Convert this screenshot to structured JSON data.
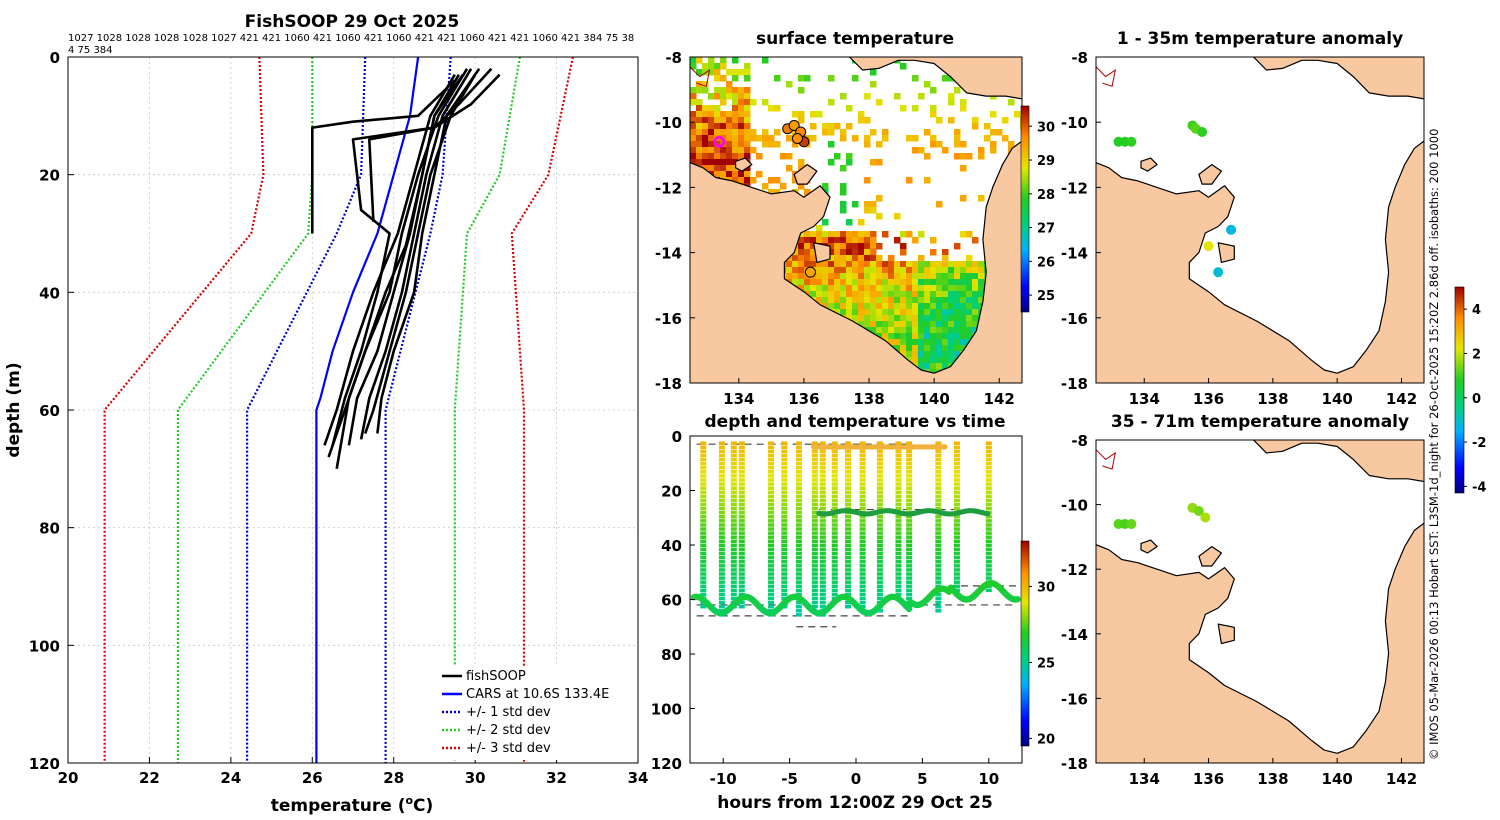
{
  "colors": {
    "land": "#f8c9a0",
    "no_data": "#ffffff",
    "profile": "#000000",
    "cars": "#0000ff",
    "sd1": "#0000cc",
    "sd2": "#22cc22",
    "sd3": "#dd0000",
    "grid": "#c8c8c8",
    "coast": "#000000",
    "river": "#aa0000"
  },
  "credit": "© IMOS 05-Mar-2026 00:13 Hobart SST: L3SM-1d_night for 26-Oct-2025 15:20Z 2.86d off. isobaths: 200  1000",
  "chart_data": [
    {
      "id": "profile",
      "type": "line",
      "title": "FishSOOP 29 Oct 2025",
      "xlabel": "temperature (°C)",
      "ylabel": "depth (m)",
      "xlim": [
        20,
        34
      ],
      "ylim": [
        0,
        120
      ],
      "y_reversed": true,
      "xticks": [
        20,
        22,
        24,
        26,
        28,
        30,
        32,
        34
      ],
      "yticks": [
        0,
        20,
        40,
        60,
        80,
        100,
        120
      ],
      "grid": true,
      "header_line1": "1027 1028 1028 1028 1028 1027 421 421 1060 421 1060 421 1060 421 421 1060 421 421 1060 421 384 75 38",
      "header_line2": "4 75 384",
      "legend": [
        "fishSOOP",
        "CARS at 10.6S 133.4E",
        "+/- 1 std dev",
        "+/- 2 std dev",
        "+/- 3 std dev"
      ],
      "legend_position": "bottom-right",
      "cars": {
        "depth": [
          0,
          10,
          20,
          30,
          40,
          50,
          58,
          60,
          65,
          120
        ],
        "temp": [
          28.6,
          28.4,
          28.0,
          27.6,
          27.0,
          26.5,
          26.2,
          26.1,
          26.1,
          26.1
        ]
      },
      "sd1": {
        "lower": {
          "depth": [
            0,
            20,
            30,
            60,
            120
          ],
          "temp": [
            27.3,
            27.2,
            26.6,
            24.4,
            24.4
          ]
        },
        "upper": {
          "depth": [
            0,
            20,
            30,
            60,
            120
          ],
          "temp": [
            29.4,
            29.2,
            28.9,
            27.8,
            27.8
          ]
        }
      },
      "sd2": {
        "lower": {
          "depth": [
            0,
            20,
            30,
            60,
            120
          ],
          "temp": [
            26.0,
            26.0,
            25.9,
            22.7,
            22.7
          ]
        },
        "upper": {
          "depth": [
            0,
            20,
            30,
            60,
            120
          ],
          "temp": [
            31.1,
            30.6,
            29.8,
            29.5,
            29.5
          ]
        }
      },
      "sd3": {
        "lower": {
          "depth": [
            0,
            20,
            30,
            60,
            120
          ],
          "temp": [
            24.7,
            24.8,
            24.5,
            20.9,
            20.9
          ]
        },
        "upper": {
          "depth": [
            0,
            20,
            30,
            60,
            120
          ],
          "temp": [
            32.4,
            31.8,
            30.9,
            31.2,
            31.2
          ]
        }
      },
      "profiles": [
        {
          "depth": [
            2,
            10,
            20,
            30,
            40,
            50,
            58,
            65
          ],
          "temp": [
            29.9,
            29.2,
            28.8,
            28.5,
            28.2,
            27.8,
            27.4,
            27.2
          ]
        },
        {
          "depth": [
            3,
            10,
            20,
            30,
            40,
            50,
            58,
            66
          ],
          "temp": [
            29.7,
            29.0,
            28.7,
            28.4,
            28.0,
            27.6,
            27.1,
            26.9
          ]
        },
        {
          "depth": [
            2,
            10,
            20,
            30,
            40,
            50,
            58,
            64
          ],
          "temp": [
            30.1,
            29.3,
            29.0,
            28.7,
            28.5,
            28.0,
            27.7,
            27.6
          ]
        },
        {
          "depth": [
            3,
            10,
            20,
            30,
            40,
            50,
            60,
            66
          ],
          "temp": [
            29.5,
            28.9,
            28.5,
            28.1,
            27.5,
            27.0,
            26.6,
            26.3
          ]
        },
        {
          "depth": [
            2,
            10,
            20,
            30,
            40,
            50,
            60,
            68
          ],
          "temp": [
            29.8,
            29.1,
            28.6,
            28.2,
            27.9,
            27.3,
            26.8,
            26.4
          ]
        },
        {
          "depth": [
            3,
            10,
            20,
            30,
            40,
            50,
            60,
            64
          ],
          "temp": [
            30.0,
            29.4,
            28.9,
            28.6,
            28.3,
            27.9,
            27.5,
            27.3
          ]
        },
        {
          "depth": [
            3,
            8,
            12,
            14,
            26,
            30,
            40,
            50,
            58,
            66
          ],
          "temp": [
            30.6,
            29.9,
            29.0,
            27.0,
            27.2,
            27.9,
            27.6,
            27.2,
            26.8,
            26.5
          ]
        },
        {
          "depth": [
            2,
            8,
            12,
            14,
            28
          ],
          "temp": [
            30.4,
            29.6,
            29.0,
            27.4,
            27.5
          ]
        },
        {
          "depth": [
            4,
            10,
            11,
            12,
            30
          ],
          "temp": [
            29.5,
            28.6,
            27.0,
            26.0,
            26.0
          ]
        },
        {
          "depth": [
            3,
            10,
            20,
            32,
            40,
            50,
            58,
            70
          ],
          "temp": [
            29.6,
            29.0,
            28.7,
            28.3,
            27.8,
            27.3,
            26.9,
            26.6
          ]
        }
      ]
    },
    {
      "id": "sst",
      "type": "heatmap",
      "title": "surface temperature",
      "xlim": [
        132.5,
        142.7
      ],
      "ylim": [
        -18,
        -8
      ],
      "xticks": [
        134,
        136,
        138,
        140,
        142
      ],
      "yticks": [
        -8,
        -10,
        -12,
        -14,
        -16,
        -18
      ],
      "colorbar_ticks": [
        25,
        26,
        27,
        28,
        29,
        30
      ],
      "colorbar_range": [
        24.5,
        30.6
      ],
      "markers": [
        {
          "lon": 135.5,
          "lat": -10.2,
          "temp": 29.8
        },
        {
          "lon": 135.7,
          "lat": -10.1,
          "temp": 29.5
        },
        {
          "lon": 135.9,
          "lat": -10.3,
          "temp": 29.7
        },
        {
          "lon": 136.0,
          "lat": -10.6,
          "temp": 30.2
        },
        {
          "lon": 135.8,
          "lat": -10.5,
          "temp": 29.6
        },
        {
          "lon": 136.2,
          "lat": -14.6,
          "temp": 29.4
        }
      ],
      "ship_marker": {
        "lon": 133.4,
        "lat": -10.6
      }
    },
    {
      "id": "timeseries",
      "type": "scatter",
      "title": "depth and temperature vs time",
      "xlabel": "hours from 12:00Z 29 Oct 25",
      "xlim": [
        -12.5,
        12.5
      ],
      "ylim": [
        0,
        120
      ],
      "y_reversed": true,
      "xticks": [
        -10,
        -5,
        0,
        5,
        10
      ],
      "yticks": [
        0,
        20,
        40,
        60,
        80,
        100,
        120
      ],
      "colorbar_ticks": [
        20,
        25,
        30
      ],
      "colorbar_range": [
        19.5,
        33
      ],
      "dives": [
        {
          "t": -11.5,
          "max": 62
        },
        {
          "t": -10.1,
          "max": 66
        },
        {
          "t": -9.2,
          "max": 63
        },
        {
          "t": -8.6,
          "max": 62
        },
        {
          "t": -6.4,
          "max": 65
        },
        {
          "t": -5.4,
          "max": 63
        },
        {
          "t": -4.3,
          "max": 66
        },
        {
          "t": -3.1,
          "max": 62
        },
        {
          "t": -2.5,
          "max": 66
        },
        {
          "t": -1.6,
          "max": 60
        },
        {
          "t": -0.6,
          "max": 63
        },
        {
          "t": 0.5,
          "max": 62
        },
        {
          "t": 1.8,
          "max": 64
        },
        {
          "t": 3.2,
          "max": 60
        },
        {
          "t": 4.0,
          "max": 62
        },
        {
          "t": 6.2,
          "max": 64
        },
        {
          "t": 7.6,
          "max": 58
        },
        {
          "t": 10.0,
          "max": 56
        }
      ],
      "reference_lines": [
        {
          "t0": -12,
          "t1": -5,
          "depth": 62
        },
        {
          "t0": -12,
          "t1": 4,
          "depth": 66
        },
        {
          "t0": -2.8,
          "t1": 8,
          "depth": 27
        },
        {
          "t0": 4,
          "t1": 12,
          "depth": 62
        },
        {
          "t0": 7,
          "t1": 12.2,
          "depth": 55
        },
        {
          "t0": -12,
          "t1": 4,
          "depth": 3
        },
        {
          "t0": -4.5,
          "t1": -1.5,
          "depth": 70
        }
      ]
    },
    {
      "id": "anom_top",
      "type": "scatter",
      "title": "1 - 35m temperature anomaly",
      "xlim": [
        132.5,
        142.7
      ],
      "ylim": [
        -18,
        -8
      ],
      "xticks": [
        134,
        136,
        138,
        140,
        142
      ],
      "yticks": [
        -8,
        -10,
        -12,
        -14,
        -16,
        -18
      ],
      "colorbar_ticks": [
        -4,
        -2,
        0,
        2,
        4
      ],
      "colorbar_range": [
        -4.3,
        5
      ],
      "points": [
        {
          "lon": 133.2,
          "lat": -10.6,
          "anom": 0.8
        },
        {
          "lon": 133.4,
          "lat": -10.6,
          "anom": 0.8
        },
        {
          "lon": 133.6,
          "lat": -10.6,
          "anom": 0.9
        },
        {
          "lon": 135.5,
          "lat": -10.1,
          "anom": 1.0
        },
        {
          "lon": 135.6,
          "lat": -10.2,
          "anom": 1.2
        },
        {
          "lon": 135.8,
          "lat": -10.3,
          "anom": 0.9
        },
        {
          "lon": 136.7,
          "lat": -13.3,
          "anom": -1.3
        },
        {
          "lon": 136.0,
          "lat": -13.8,
          "anom": 2.2
        },
        {
          "lon": 136.3,
          "lat": -14.6,
          "anom": -1.1
        }
      ]
    },
    {
      "id": "anom_bottom",
      "type": "scatter",
      "title": "35 - 71m temperature anomaly",
      "xlim": [
        132.5,
        142.7
      ],
      "ylim": [
        -18,
        -8
      ],
      "xticks": [
        134,
        136,
        138,
        140,
        142
      ],
      "yticks": [
        -8,
        -10,
        -12,
        -14,
        -16,
        -18
      ],
      "points": [
        {
          "lon": 133.2,
          "lat": -10.6,
          "anom": 1.2
        },
        {
          "lon": 133.4,
          "lat": -10.6,
          "anom": 1.1
        },
        {
          "lon": 133.6,
          "lat": -10.6,
          "anom": 1.3
        },
        {
          "lon": 135.5,
          "lat": -10.1,
          "anom": 1.6
        },
        {
          "lon": 135.7,
          "lat": -10.2,
          "anom": 1.4
        },
        {
          "lon": 135.9,
          "lat": -10.4,
          "anom": 1.8
        }
      ]
    }
  ]
}
